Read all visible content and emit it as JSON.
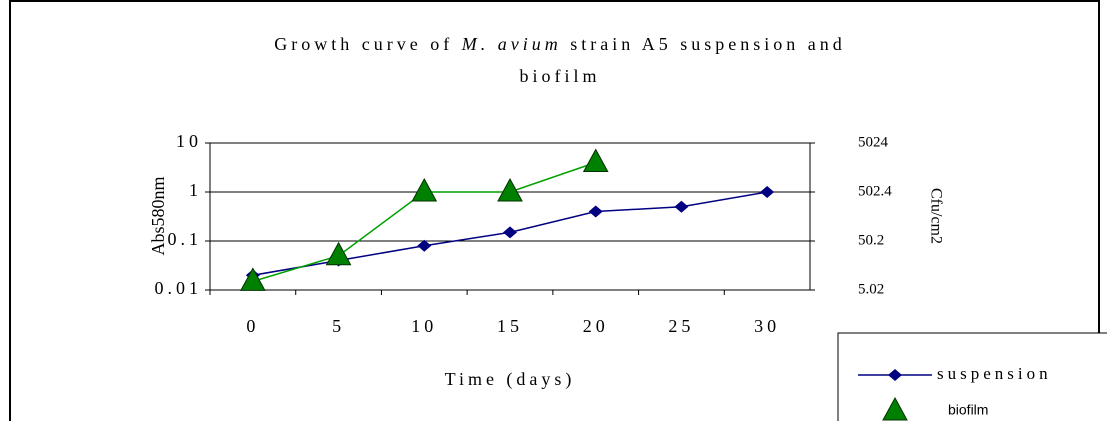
{
  "chart_data": {
    "type": "line",
    "title_parts": [
      "Growth curve of ",
      "M. avium",
      " strain A5 suspension and",
      "biofilm"
    ],
    "xlabel": "Time (days)",
    "ylabel": "Abs580nm",
    "y2label": "Cfu/cm2",
    "categories": [
      "0",
      "5",
      "10",
      "15",
      "20",
      "25",
      "30"
    ],
    "series": [
      {
        "name": "suspension",
        "color": "#000080",
        "marker": "diamond",
        "values": [
          0.02,
          0.04,
          0.08,
          0.15,
          0.4,
          0.5,
          1
        ]
      },
      {
        "name": "biofilm",
        "color": "#008000",
        "marker": "triangle",
        "values": [
          0.015,
          0.05,
          1,
          1,
          4,
          null,
          null
        ]
      }
    ],
    "ylim": [
      0.01,
      10
    ],
    "yticks": [
      0.01,
      0.1,
      1,
      10
    ],
    "log_scale": true,
    "y2lim": [
      5.02,
      5024
    ],
    "y2ticks": [
      5.02,
      50.2,
      502.4,
      5024
    ],
    "grid": true,
    "legend_position": "bottom-right"
  }
}
